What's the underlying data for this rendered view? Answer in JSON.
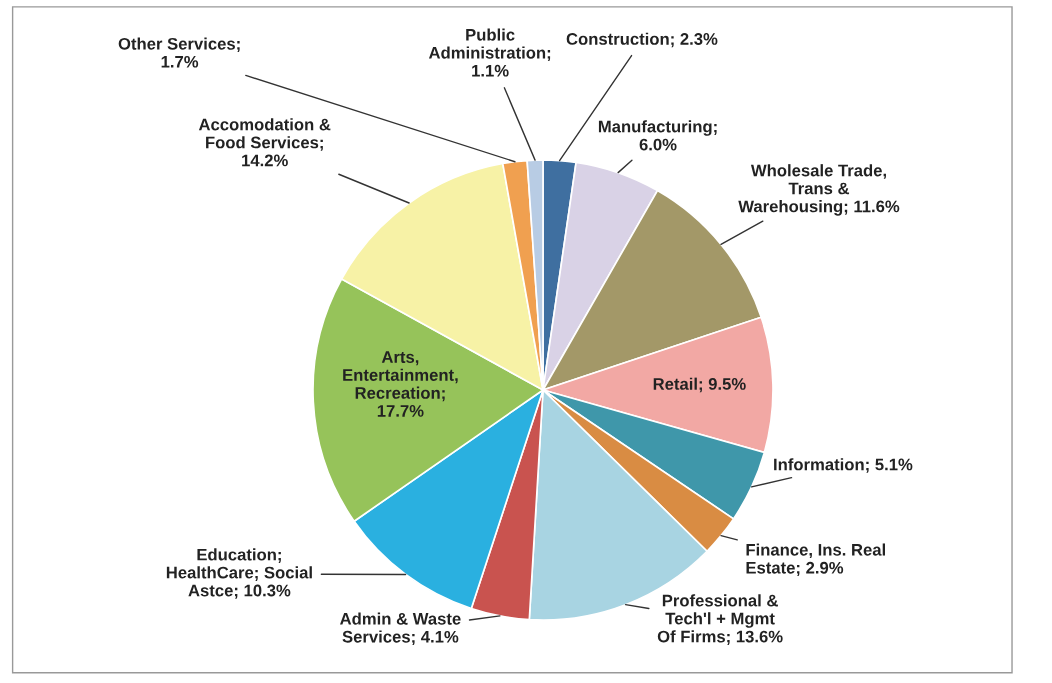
{
  "chart_data": {
    "type": "pie",
    "categories": [
      "Construction; 2.3%",
      "Manufacturing;\n6.0%",
      "Wholesale Trade,\nTrans &\nWarehousing; 11.6%",
      "Retail; 9.5%",
      "Information; 5.1%",
      "Finance, Ins. Real\nEstate; 2.9%",
      "Professional &\nTech'l + Mgmt\nOf Firms; 13.6%",
      "Admin & Waste\nServices; 4.1%",
      "Education;\nHealthCare; Social\nAstce; 10.3%",
      "Arts,\nEntertainment,\nRecreation;\n17.7%",
      "Accomodation &\nFood Services;\n14.2%",
      "Other Services;\n1.7%",
      "Public\nAdministration;\n1.1%"
    ],
    "values": [
      2.3,
      6.0,
      11.6,
      9.5,
      5.1,
      2.9,
      13.6,
      4.1,
      10.3,
      17.7,
      14.2,
      1.7,
      1.1
    ],
    "colors": [
      "#3f6fa0",
      "#d9d2e6",
      "#a39868",
      "#f2a8a4",
      "#3f97aa",
      "#d98c43",
      "#a8d4e2",
      "#c9534f",
      "#2ab0e0",
      "#96c35a",
      "#f7f2a6",
      "#f0a050",
      "#b8cce4"
    ]
  }
}
